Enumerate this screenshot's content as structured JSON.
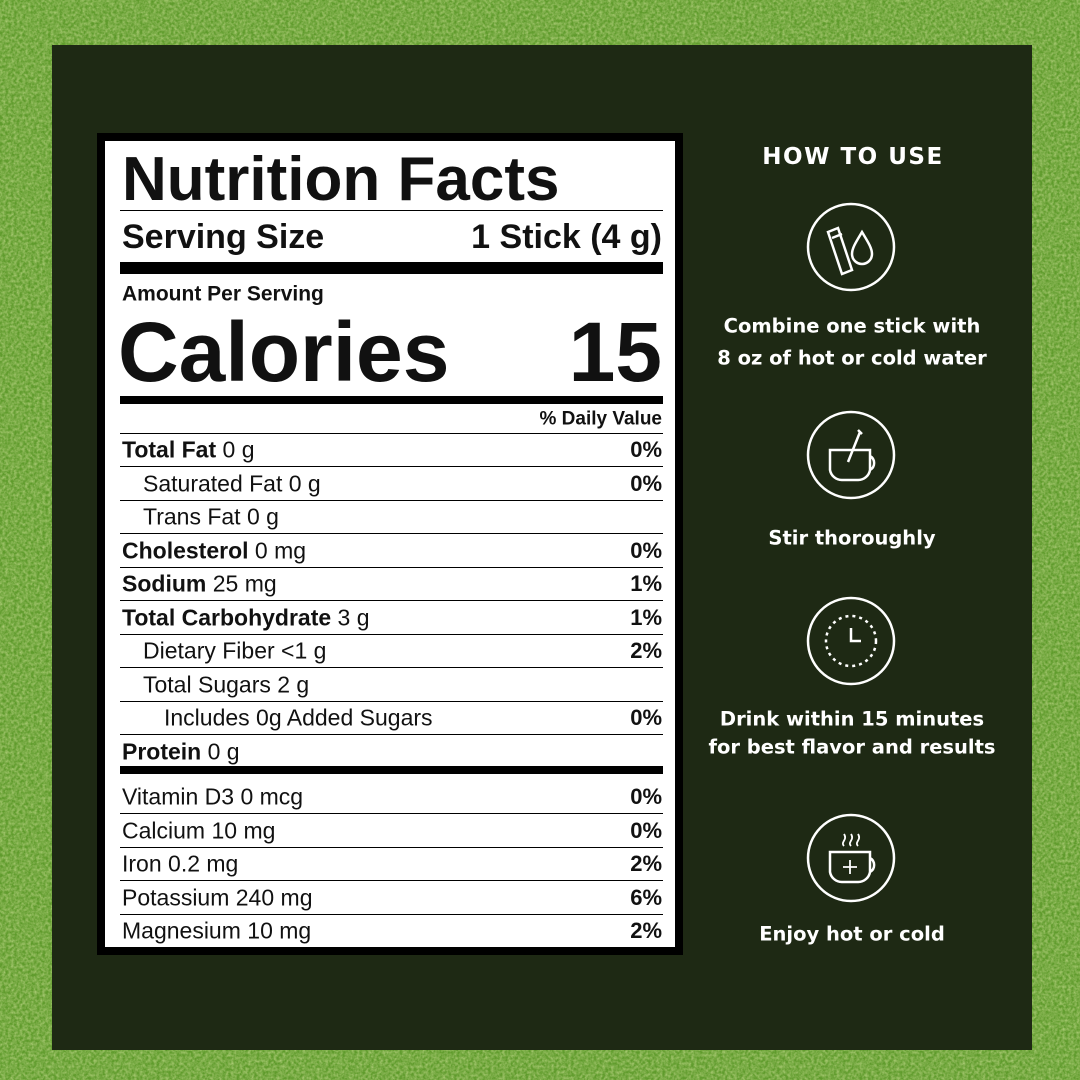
{
  "nutrition": {
    "title": "Nutrition Facts",
    "serving_label": "Serving Size",
    "serving_value": "1 Stick (4 g)",
    "amount_per_serving": "Amount Per Serving",
    "calories_label": "Calories",
    "calories": 15,
    "dv_header": "% Daily Value",
    "rows": [
      {
        "label": "Total Fat",
        "amount": "0 g",
        "dv": "0%",
        "bold": true,
        "indent": 0
      },
      {
        "label": "Saturated Fat",
        "amount": "0 g",
        "dv": "0%",
        "bold": false,
        "indent": 1
      },
      {
        "label": "Trans Fat",
        "amount": "0 g",
        "bold": false,
        "indent": 1
      },
      {
        "label": "Cholesterol",
        "amount": "0 mg",
        "dv": "0%",
        "bold": true,
        "indent": 0
      },
      {
        "label": "Sodium",
        "amount": "25 mg",
        "dv": "1%",
        "bold": true,
        "indent": 0
      },
      {
        "label": "Total Carbohydrate",
        "amount": "3 g",
        "dv": "1%",
        "bold": true,
        "indent": 0
      },
      {
        "label": "Dietary Fiber",
        "amount": "<1 g",
        "dv": "2%",
        "bold": false,
        "indent": 1
      },
      {
        "label": "Total Sugars",
        "amount": "2 g",
        "bold": false,
        "indent": 1
      },
      {
        "label": "Includes 0g Added Sugars",
        "dv": "0%",
        "bold": false,
        "indent": 2
      },
      {
        "label": "Protein",
        "amount": "0 g",
        "bold": true,
        "indent": 0
      }
    ],
    "micros": [
      {
        "label": "Vitamin D3",
        "amount": "0 mcg",
        "dv": "0%"
      },
      {
        "label": "Calcium",
        "amount": "10 mg",
        "dv": "0%"
      },
      {
        "label": "Iron",
        "amount": "0.2 mg",
        "dv": "2%"
      },
      {
        "label": "Potassium",
        "amount": "240 mg",
        "dv": "6%"
      },
      {
        "label": "Magnesium",
        "amount": "10 mg",
        "dv": "2%"
      }
    ]
  },
  "how_to_use": {
    "title": "HOW TO USE",
    "steps": [
      {
        "lines": [
          "Combine one stick with",
          "8 oz of hot or cold water"
        ]
      },
      {
        "lines": [
          "Stir thoroughly"
        ]
      },
      {
        "lines": [
          "Drink within 15 minutes",
          "for best flavor and results"
        ]
      },
      {
        "lines": [
          "Enjoy hot or cold"
        ]
      }
    ]
  }
}
